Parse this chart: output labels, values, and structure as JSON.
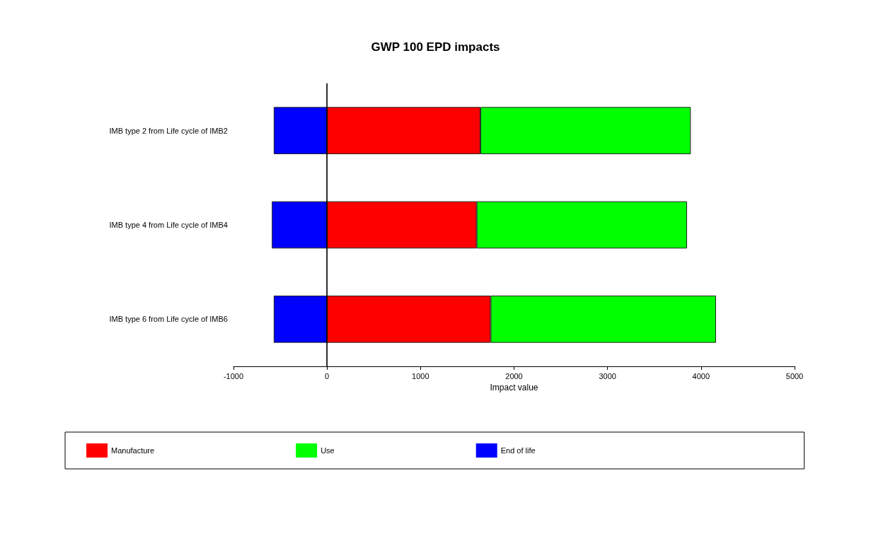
{
  "chart_data": {
    "type": "bar",
    "orientation": "horizontal",
    "stacked": true,
    "title": "GWP 100 EPD impacts",
    "xlabel": "Impact value",
    "categories": [
      "IMB type 2 from Life cycle of IMB2",
      "IMB type 4 from Life cycle of IMB4",
      "IMB type 6 from Life cycle of IMB6"
    ],
    "series": [
      {
        "name": "Manufacture",
        "color": "#ff0000",
        "values": [
          1640,
          1600,
          1750
        ]
      },
      {
        "name": "Use",
        "color": "#00ff00",
        "values": [
          2250,
          2250,
          2410
        ]
      },
      {
        "name": "End of life",
        "color": "#0000ff",
        "values": [
          -570,
          -590,
          -570
        ]
      }
    ],
    "xlim": [
      -1000,
      5000
    ],
    "xticks": [
      -1000,
      0,
      1000,
      2000,
      3000,
      4000,
      5000
    ],
    "ref_lines": [
      {
        "axis": "x",
        "value": 0,
        "color": "#000000"
      }
    ],
    "grid": false,
    "legend": "bottom"
  }
}
